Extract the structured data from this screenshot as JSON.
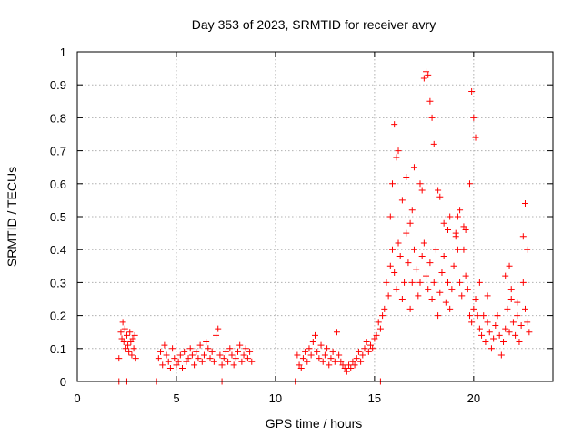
{
  "chart_data": {
    "type": "scatter",
    "title": "Day 353 of 2023, SRMTID for receiver avry",
    "xlabel": "GPS time / hours",
    "ylabel": "SRMTID / TECUs",
    "xlim": [
      0,
      24
    ],
    "ylim": [
      0,
      1
    ],
    "xticks": [
      0,
      5,
      10,
      15,
      20
    ],
    "yticks": [
      0,
      0.1,
      0.2,
      0.3,
      0.4,
      0.5,
      0.6,
      0.7,
      0.8,
      0.9,
      1
    ],
    "xtick_labels": [
      "0",
      "5",
      "10",
      "15",
      "20"
    ],
    "ytick_labels": [
      "0",
      "0.1",
      "0.2",
      "0.3",
      "0.4",
      "0.5",
      "0.6",
      "0.7",
      "0.8",
      "0.9",
      "1"
    ],
    "grid": true,
    "marker_color": "#ff0000",
    "marker": "+",
    "series": [
      {
        "name": "SRMTID",
        "x": [
          2.1,
          2.2,
          2.25,
          2.3,
          2.35,
          2.4,
          2.45,
          2.5,
          2.55,
          2.6,
          2.65,
          2.7,
          2.75,
          2.8,
          2.85,
          2.9,
          2.95,
          4.1,
          4.2,
          4.3,
          4.4,
          4.5,
          4.6,
          4.7,
          4.8,
          4.9,
          5.0,
          5.1,
          5.2,
          5.3,
          5.4,
          5.5,
          5.6,
          5.7,
          5.8,
          5.9,
          6.0,
          6.1,
          6.2,
          6.3,
          6.4,
          6.5,
          6.6,
          6.7,
          6.8,
          6.9,
          7.0,
          7.1,
          7.2,
          7.3,
          7.4,
          7.5,
          7.6,
          7.7,
          7.8,
          7.9,
          8.0,
          8.1,
          8.2,
          8.3,
          8.4,
          8.5,
          8.6,
          8.7,
          8.8,
          11.1,
          11.2,
          11.3,
          11.4,
          11.5,
          11.6,
          11.7,
          11.8,
          11.9,
          12.0,
          12.1,
          12.2,
          12.3,
          12.4,
          12.5,
          12.6,
          12.7,
          12.8,
          12.9,
          13.0,
          13.1,
          13.2,
          13.3,
          13.4,
          13.5,
          13.6,
          13.7,
          13.8,
          13.9,
          14.0,
          14.1,
          14.2,
          14.3,
          14.4,
          14.5,
          14.6,
          14.7,
          14.8,
          14.9,
          15.0,
          15.1,
          15.2,
          15.3,
          15.4,
          15.5,
          15.6,
          15.7,
          15.8,
          15.9,
          16.0,
          16.1,
          16.2,
          16.3,
          16.4,
          16.5,
          16.6,
          16.7,
          16.8,
          16.9,
          17.0,
          17.1,
          17.2,
          17.3,
          17.4,
          17.5,
          17.6,
          17.7,
          17.8,
          17.9,
          18.0,
          18.1,
          18.2,
          18.3,
          18.4,
          18.5,
          18.6,
          18.7,
          18.8,
          18.9,
          19.0,
          19.1,
          19.2,
          19.3,
          19.4,
          19.5,
          19.6,
          19.7,
          19.8,
          19.9,
          20.0,
          20.1,
          20.2,
          20.3,
          20.4,
          20.5,
          20.6,
          20.7,
          20.8,
          20.9,
          21.0,
          21.1,
          21.2,
          21.3,
          21.4,
          21.5,
          21.6,
          21.7,
          21.8,
          21.9,
          22.0,
          22.1,
          22.2,
          22.3,
          22.4,
          22.5,
          22.6,
          22.7,
          22.8,
          15.8,
          15.9,
          16.0,
          16.2,
          16.4,
          16.6,
          16.8,
          17.0,
          17.3,
          17.5,
          17.6,
          17.7,
          17.8,
          17.9,
          18.0,
          18.2,
          18.5,
          18.8,
          19.1,
          19.3,
          19.5,
          19.8,
          19.9,
          20.0,
          20.1,
          21.6,
          21.8,
          22.5,
          22.6,
          22.7,
          16.1,
          16.9,
          17.4,
          18.3,
          18.7,
          19.2,
          19.6,
          20.3,
          20.7,
          21.2,
          21.9,
          22.2,
          2.1,
          2.5,
          4.0,
          7.3,
          11.0,
          15.3
        ],
        "y": [
          0.07,
          0.15,
          0.13,
          0.18,
          0.12,
          0.16,
          0.1,
          0.14,
          0.11,
          0.09,
          0.15,
          0.12,
          0.08,
          0.13,
          0.1,
          0.14,
          0.07,
          0.07,
          0.09,
          0.05,
          0.11,
          0.08,
          0.06,
          0.04,
          0.1,
          0.07,
          0.05,
          0.06,
          0.08,
          0.04,
          0.09,
          0.06,
          0.07,
          0.1,
          0.08,
          0.05,
          0.09,
          0.07,
          0.11,
          0.06,
          0.08,
          0.12,
          0.1,
          0.07,
          0.09,
          0.06,
          0.14,
          0.16,
          0.08,
          0.05,
          0.07,
          0.09,
          0.06,
          0.1,
          0.08,
          0.05,
          0.07,
          0.09,
          0.11,
          0.06,
          0.08,
          0.1,
          0.07,
          0.09,
          0.06,
          0.08,
          0.05,
          0.04,
          0.07,
          0.09,
          0.06,
          0.1,
          0.08,
          0.12,
          0.14,
          0.09,
          0.07,
          0.11,
          0.06,
          0.08,
          0.1,
          0.05,
          0.07,
          0.09,
          0.06,
          0.15,
          0.08,
          0.06,
          0.05,
          0.04,
          0.03,
          0.05,
          0.04,
          0.06,
          0.05,
          0.07,
          0.09,
          0.06,
          0.08,
          0.1,
          0.12,
          0.09,
          0.11,
          0.1,
          0.13,
          0.14,
          0.18,
          0.16,
          0.2,
          0.22,
          0.3,
          0.26,
          0.35,
          0.4,
          0.33,
          0.28,
          0.42,
          0.38,
          0.25,
          0.3,
          0.45,
          0.36,
          0.22,
          0.3,
          0.4,
          0.34,
          0.26,
          0.3,
          0.38,
          0.42,
          0.32,
          0.28,
          0.36,
          0.25,
          0.3,
          0.4,
          0.2,
          0.27,
          0.33,
          0.38,
          0.24,
          0.3,
          0.22,
          0.28,
          0.35,
          0.45,
          0.5,
          0.3,
          0.26,
          0.4,
          0.32,
          0.28,
          0.2,
          0.18,
          0.22,
          0.25,
          0.2,
          0.16,
          0.14,
          0.2,
          0.12,
          0.18,
          0.15,
          0.1,
          0.13,
          0.17,
          0.2,
          0.14,
          0.08,
          0.12,
          0.16,
          0.22,
          0.15,
          0.25,
          0.18,
          0.14,
          0.2,
          0.12,
          0.17,
          0.3,
          0.22,
          0.18,
          0.15,
          0.5,
          0.6,
          0.78,
          0.7,
          0.55,
          0.62,
          0.48,
          0.65,
          0.6,
          0.92,
          0.94,
          0.93,
          0.85,
          0.8,
          0.72,
          0.58,
          0.48,
          0.5,
          0.44,
          0.52,
          0.47,
          0.6,
          0.88,
          0.8,
          0.74,
          0.32,
          0.35,
          0.44,
          0.54,
          0.4,
          0.68,
          0.52,
          0.58,
          0.56,
          0.46,
          0.4,
          0.46,
          0.3,
          0.26,
          0.2,
          0.28,
          0.24,
          0,
          0,
          0,
          0,
          0,
          0
        ]
      }
    ]
  }
}
